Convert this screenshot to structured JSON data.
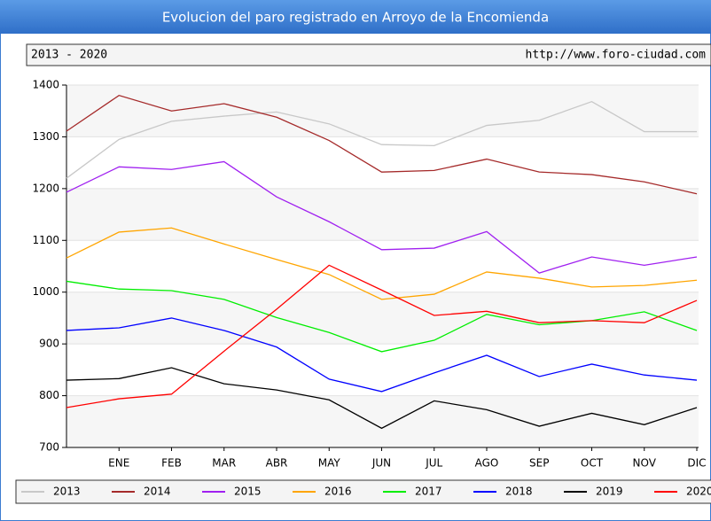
{
  "chart_data": {
    "type": "line",
    "title": "Evolucion del paro registrado en Arroyo de la Encomienda",
    "subtitle": "2013 - 2020",
    "source": "http://www.foro-ciudad.com",
    "categories": [
      null,
      "ENE",
      "FEB",
      "MAR",
      "ABR",
      "MAY",
      "JUN",
      "JUL",
      "AGO",
      "SEP",
      "OCT",
      "NOV",
      "DIC"
    ],
    "ylim": [
      700,
      1400
    ],
    "yticks": [
      700,
      800,
      900,
      1000,
      1100,
      1200,
      1300,
      1400
    ],
    "grid": true,
    "legend": "bottom",
    "series": [
      {
        "name": "2013",
        "color": "#c8c8c8",
        "values": [
          1220,
          1295,
          1330,
          1340,
          1348,
          1325,
          1285,
          1283,
          1322,
          1332,
          1368,
          1310,
          1310
        ]
      },
      {
        "name": "2014",
        "color": "#a52a2a",
        "values": [
          1311,
          1380,
          1350,
          1364,
          1338,
          1293,
          1232,
          1235,
          1257,
          1232,
          1227,
          1213,
          1190
        ]
      },
      {
        "name": "2015",
        "color": "#a020f0",
        "values": [
          1193,
          1242,
          1237,
          1252,
          1184,
          1136,
          1082,
          1085,
          1117,
          1037,
          1068,
          1052,
          1068
        ]
      },
      {
        "name": "2016",
        "color": "#ffa500",
        "values": [
          1066,
          1116,
          1124,
          1093,
          1063,
          1034,
          986,
          996,
          1039,
          1027,
          1010,
          1013,
          1023
        ]
      },
      {
        "name": "2017",
        "color": "#00ee00",
        "values": [
          1021,
          1006,
          1003,
          986,
          951,
          922,
          885,
          907,
          957,
          937,
          945,
          962,
          926
        ]
      },
      {
        "name": "2018",
        "color": "#0000ff",
        "values": [
          926,
          931,
          950,
          926,
          894,
          832,
          808,
          844,
          878,
          837,
          861,
          840,
          830
        ]
      },
      {
        "name": "2019",
        "color": "#000000",
        "values": [
          830,
          833,
          854,
          823,
          811,
          792,
          737,
          790,
          773,
          741,
          766,
          744,
          777
        ]
      },
      {
        "name": "2020",
        "color": "#ff0000",
        "values": [
          777,
          794,
          803,
          886,
          967,
          1052,
          1004,
          955,
          963,
          941,
          945,
          941,
          984
        ]
      }
    ]
  }
}
